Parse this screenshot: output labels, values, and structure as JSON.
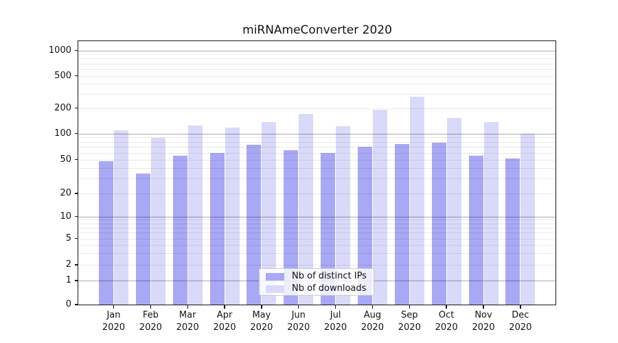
{
  "title": "miRNAmeConverter 2020",
  "chart_data": {
    "type": "bar",
    "title": "miRNAmeConverter 2020",
    "categories": [
      "Jan 2020",
      "Feb 2020",
      "Mar 2020",
      "Apr 2020",
      "May 2020",
      "Jun 2020",
      "Jul 2020",
      "Aug 2020",
      "Sep 2020",
      "Oct 2020",
      "Nov 2020",
      "Dec 2020"
    ],
    "series": [
      {
        "name": "Nb of distinct IPs",
        "color": "#a8a8f4",
        "values": [
          48,
          34,
          55,
          60,
          74,
          64,
          60,
          70,
          75,
          78,
          55,
          51
        ]
      },
      {
        "name": "Nb of downloads",
        "color": "#d9d9fa",
        "values": [
          108,
          89,
          125,
          117,
          135,
          170,
          122,
          190,
          278,
          152,
          135,
          100
        ]
      }
    ],
    "yscale": "symlog",
    "ytick_values": [
      0,
      1,
      2,
      5,
      10,
      20,
      50,
      100,
      200,
      500,
      1000
    ],
    "ytick_labels": [
      "0",
      "1",
      "2",
      "5",
      "10",
      "20",
      "50",
      "100",
      "200",
      "500",
      "1000"
    ],
    "ylim": [
      0,
      1300
    ],
    "grid": true,
    "grid_minor": true,
    "legend_position": "inside-bottom-center",
    "legend_entries": [
      "Nb of distinct IPs",
      "Nb of downloads"
    ]
  },
  "colors": {
    "bar_distinct_ips": "#a8a8f4",
    "bar_downloads": "#d9d9fa",
    "grid_major": "#aaaaaa",
    "grid_minor": "#e9e9e9",
    "spine": "#161616",
    "text": "#111111",
    "legend_border": "#cccccc"
  }
}
